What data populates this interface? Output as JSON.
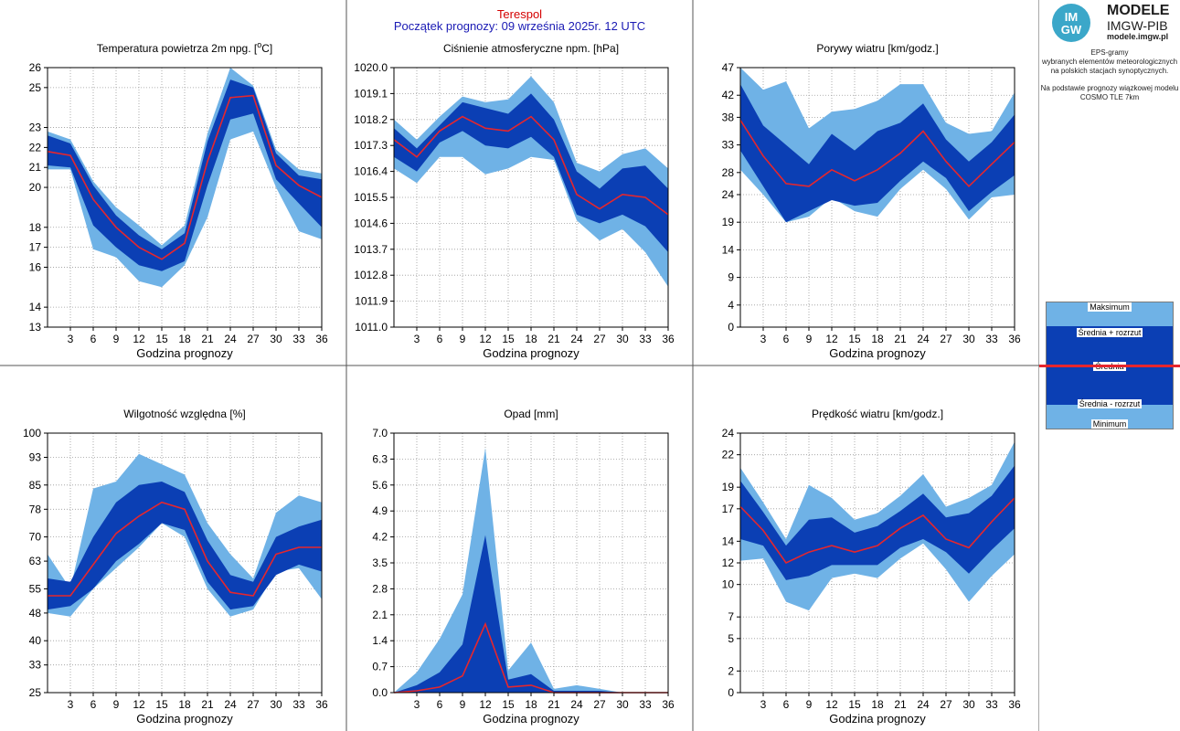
{
  "station": "Terespol",
  "forecast_start": "Początek prognozy: 09 września 2025r. 12 UTC",
  "logo": {
    "line1": "MODELE",
    "line2": "IMGW-PIB",
    "line3": "modele.imgw.pl",
    "badge_top": "IM",
    "badge_bottom": "GW"
  },
  "description": {
    "line1": "EPS-gramy",
    "line2": "wybranych elementów meteorologicznych",
    "line3": "na polskich stacjach  synoptycznych.",
    "line4": "Na podstawie prognozy wiązkowej modelu",
    "line5": "COSMO TLE 7km"
  },
  "legend": {
    "max": "Maksimum",
    "mean_plus": "Średnia + rozrzut",
    "mean": "Średnia",
    "mean_minus": "Średnia - rozrzut",
    "min": "Minimum"
  },
  "colors": {
    "outer_band": "#6fb2e6",
    "inner_band": "#0b3fb4",
    "mean_line": "#e6262d",
    "station": "#d40000",
    "forecast_start": "#1a1ab4"
  },
  "chart_data": [
    {
      "type": "area",
      "id": "temp",
      "title": "Temperatura powietrza 2m npg. [°C]",
      "title_html_parts": [
        "Temperatura powietrza 2m npg. [",
        "o",
        "C]"
      ],
      "xlabel": "Godzina prognozy",
      "x": [
        0,
        3,
        6,
        9,
        12,
        15,
        18,
        21,
        24,
        27,
        30,
        33,
        36
      ],
      "xticks": [
        3,
        6,
        9,
        12,
        15,
        18,
        21,
        24,
        27,
        30,
        33,
        36
      ],
      "ylim": [
        13,
        26
      ],
      "yticks": [
        13,
        14,
        16,
        17,
        18,
        20,
        21,
        22,
        23,
        25,
        26
      ],
      "ytick_labels": [
        "13",
        "14",
        "16",
        "17",
        "18",
        "20",
        "21",
        "22",
        "23",
        "25",
        "26"
      ],
      "max": [
        22.8,
        22.4,
        20.3,
        19.0,
        18.1,
        17.1,
        18.1,
        22.7,
        26.0,
        25.1,
        21.9,
        20.9,
        20.7
      ],
      "mean_plus": [
        22.6,
        22.2,
        20.1,
        18.6,
        17.6,
        16.9,
        17.7,
        22.3,
        25.4,
        25.0,
        21.7,
        20.6,
        20.4
      ],
      "mean": [
        21.8,
        21.6,
        19.4,
        18.0,
        17.0,
        16.4,
        17.2,
        21.3,
        24.5,
        24.6,
        21.1,
        20.1,
        19.5
      ],
      "mean_minus": [
        21.1,
        21.0,
        18.1,
        17.0,
        16.1,
        15.8,
        16.3,
        20.1,
        23.4,
        23.7,
        20.4,
        19.2,
        18.0
      ],
      "min": [
        20.9,
        20.9,
        16.9,
        16.5,
        15.3,
        15.0,
        16.1,
        18.5,
        22.4,
        22.8,
        20.0,
        17.8,
        17.4
      ]
    },
    {
      "type": "area",
      "id": "pressure",
      "title": "Ciśnienie atmosferyczne npm. [hPa]",
      "xlabel": "Godzina prognozy",
      "x": [
        0,
        3,
        6,
        9,
        12,
        15,
        18,
        21,
        24,
        27,
        30,
        33,
        36
      ],
      "xticks": [
        3,
        6,
        9,
        12,
        15,
        18,
        21,
        24,
        27,
        30,
        33,
        36
      ],
      "ylim": [
        1011.0,
        1020.0
      ],
      "yticks": [
        1011.0,
        1011.9,
        1012.8,
        1013.7,
        1014.6,
        1015.5,
        1016.4,
        1017.3,
        1018.2,
        1019.1,
        1020.0
      ],
      "ytick_labels": [
        "1011.0",
        "1011.9",
        "1012.8",
        "1013.7",
        "1014.6",
        "1015.5",
        "1016.4",
        "1017.3",
        "1018.2",
        "1019.1",
        "1020.0"
      ],
      "max": [
        1018.2,
        1017.5,
        1018.3,
        1019.0,
        1018.8,
        1018.9,
        1019.7,
        1018.8,
        1016.7,
        1016.4,
        1017.0,
        1017.2,
        1016.5
      ],
      "mean_plus": [
        1017.9,
        1017.2,
        1018.0,
        1018.8,
        1018.6,
        1018.4,
        1019.1,
        1018.2,
        1016.4,
        1015.8,
        1016.5,
        1016.6,
        1015.8
      ],
      "mean": [
        1017.5,
        1016.9,
        1017.8,
        1018.3,
        1017.9,
        1017.8,
        1018.3,
        1017.5,
        1015.6,
        1015.1,
        1015.6,
        1015.5,
        1014.9
      ],
      "mean_minus": [
        1016.9,
        1016.4,
        1017.4,
        1017.8,
        1017.3,
        1017.2,
        1017.6,
        1016.9,
        1014.9,
        1014.6,
        1014.9,
        1014.5,
        1013.6
      ],
      "min": [
        1016.5,
        1016.0,
        1016.9,
        1016.9,
        1016.3,
        1016.5,
        1016.9,
        1016.8,
        1014.7,
        1014.0,
        1014.4,
        1013.6,
        1012.4
      ]
    },
    {
      "type": "area",
      "id": "gusts",
      "title": "Porywy wiatru [km/godz.]",
      "xlabel": "Godzina prognozy",
      "x": [
        0,
        3,
        6,
        9,
        12,
        15,
        18,
        21,
        24,
        27,
        30,
        33,
        36
      ],
      "xticks": [
        3,
        6,
        9,
        12,
        15,
        18,
        21,
        24,
        27,
        30,
        33,
        36
      ],
      "ylim": [
        0,
        47
      ],
      "yticks": [
        0,
        4,
        9,
        14,
        19,
        24,
        28,
        33,
        38,
        42,
        47
      ],
      "ytick_labels": [
        "0",
        "4",
        "9",
        "14",
        "19",
        "24",
        "28",
        "33",
        "38",
        "42",
        "47"
      ],
      "max": [
        47,
        43,
        44.5,
        36,
        39,
        39.5,
        41,
        44,
        44,
        37,
        35,
        35.5,
        42.5
      ],
      "mean_plus": [
        44,
        36.5,
        33,
        29.5,
        35,
        32,
        35.5,
        37,
        40.5,
        34,
        30,
        33.5,
        38.5
      ],
      "mean": [
        37.5,
        31,
        26,
        25.5,
        28.5,
        26.5,
        28.5,
        31.5,
        35.5,
        30,
        25.5,
        29.5,
        33.5
      ],
      "mean_minus": [
        32,
        25.5,
        19,
        21,
        23,
        22,
        22.5,
        26.5,
        30,
        27,
        21,
        24.5,
        27.5
      ],
      "min": [
        28.5,
        24,
        19,
        20,
        23.5,
        21,
        20,
        25,
        28.5,
        25,
        19.5,
        23.5,
        24
      ]
    },
    {
      "type": "area",
      "id": "humidity",
      "title": "Wilgotność względna [%]",
      "xlabel": "Godzina prognozy",
      "x": [
        0,
        3,
        6,
        9,
        12,
        15,
        18,
        21,
        24,
        27,
        30,
        33,
        36
      ],
      "xticks": [
        3,
        6,
        9,
        12,
        15,
        18,
        21,
        24,
        27,
        30,
        33,
        36
      ],
      "ylim": [
        25,
        100
      ],
      "yticks": [
        25,
        33,
        40,
        48,
        55,
        63,
        70,
        78,
        85,
        93,
        100
      ],
      "ytick_labels": [
        "25",
        "33",
        "40",
        "48",
        "55",
        "63",
        "70",
        "78",
        "85",
        "93",
        "100"
      ],
      "max": [
        65,
        55,
        84,
        86,
        94,
        91,
        88,
        74,
        65,
        58,
        77,
        82,
        80
      ],
      "mean_plus": [
        58,
        57,
        70,
        80,
        85,
        86,
        83,
        69,
        59,
        57,
        70,
        73,
        75
      ],
      "mean": [
        53,
        53,
        62,
        71,
        76,
        80,
        78,
        63,
        54,
        53,
        65,
        67,
        67
      ],
      "mean_minus": [
        49,
        50,
        55,
        63,
        68,
        74,
        72,
        57,
        49,
        50,
        59,
        62,
        60
      ],
      "min": [
        48,
        47,
        55,
        61,
        67,
        74,
        70,
        55,
        47,
        49,
        60,
        61,
        52
      ]
    },
    {
      "type": "area",
      "id": "precip",
      "title": "Opad [mm]",
      "xlabel": "Godzina prognozy",
      "x": [
        0,
        3,
        6,
        9,
        12,
        15,
        18,
        21,
        24,
        27,
        30,
        33,
        36
      ],
      "xticks": [
        3,
        6,
        9,
        12,
        15,
        18,
        21,
        24,
        27,
        30,
        33,
        36
      ],
      "ylim": [
        0.0,
        7.0
      ],
      "yticks": [
        0.0,
        0.7,
        1.4,
        2.1,
        2.8,
        3.5,
        4.2,
        4.9,
        5.6,
        6.3,
        7.0
      ],
      "ytick_labels": [
        "0.0",
        "0.7",
        "1.4",
        "2.1",
        "2.8",
        "3.5",
        "4.2",
        "4.9",
        "5.6",
        "6.3",
        "7.0"
      ],
      "max": [
        0.0,
        0.55,
        1.45,
        2.65,
        6.6,
        0.6,
        1.35,
        0.1,
        0.2,
        0.1,
        0.0,
        0.0,
        0.0
      ],
      "mean_plus": [
        0.0,
        0.2,
        0.55,
        1.3,
        4.25,
        0.35,
        0.5,
        0.05,
        0.05,
        0.05,
        0.0,
        0.0,
        0.0
      ],
      "mean": [
        0.0,
        0.05,
        0.15,
        0.45,
        1.85,
        0.15,
        0.2,
        0.0,
        0.0,
        0.0,
        0.0,
        0.0,
        0.0
      ],
      "mean_minus": [
        0.0,
        0.0,
        0.0,
        0.0,
        0.0,
        0.0,
        0.0,
        0.0,
        0.0,
        0.0,
        0.0,
        0.0,
        0.0
      ],
      "min": [
        0.0,
        0.0,
        0.0,
        0.0,
        0.0,
        0.0,
        0.0,
        0.0,
        0.0,
        0.0,
        0.0,
        0.0,
        0.0
      ]
    },
    {
      "type": "area",
      "id": "wind",
      "title": "Prędkość wiatru [km/godz.]",
      "xlabel": "Godzina prognozy",
      "x": [
        0,
        3,
        6,
        9,
        12,
        15,
        18,
        21,
        24,
        27,
        30,
        33,
        36
      ],
      "xticks": [
        3,
        6,
        9,
        12,
        15,
        18,
        21,
        24,
        27,
        30,
        33,
        36
      ],
      "ylim": [
        0,
        24
      ],
      "yticks": [
        0,
        2,
        5,
        7,
        10,
        12,
        14,
        17,
        19,
        22,
        24
      ],
      "ytick_labels": [
        "0",
        "2",
        "5",
        "7",
        "10",
        "12",
        "14",
        "17",
        "19",
        "22",
        "24"
      ],
      "max": [
        20.8,
        17.6,
        14.2,
        19.2,
        18.0,
        16.0,
        16.6,
        18.2,
        20.2,
        17.2,
        18.0,
        19.2,
        23.2
      ],
      "mean_plus": [
        19.6,
        16.7,
        13.6,
        16.0,
        16.2,
        14.8,
        15.4,
        16.8,
        18.4,
        16.2,
        16.6,
        18.2,
        21.0
      ],
      "mean": [
        17.2,
        15.0,
        12.0,
        13.0,
        13.6,
        13.0,
        13.6,
        15.2,
        16.4,
        14.2,
        13.4,
        15.8,
        18.0
      ],
      "mean_minus": [
        14.2,
        13.6,
        10.4,
        10.8,
        11.8,
        11.8,
        11.8,
        13.4,
        14.2,
        13.0,
        11.0,
        13.2,
        15.2
      ],
      "min": [
        12.2,
        12.4,
        8.4,
        7.6,
        10.6,
        11.0,
        10.6,
        12.4,
        13.8,
        11.4,
        8.4,
        10.8,
        12.8
      ]
    }
  ]
}
